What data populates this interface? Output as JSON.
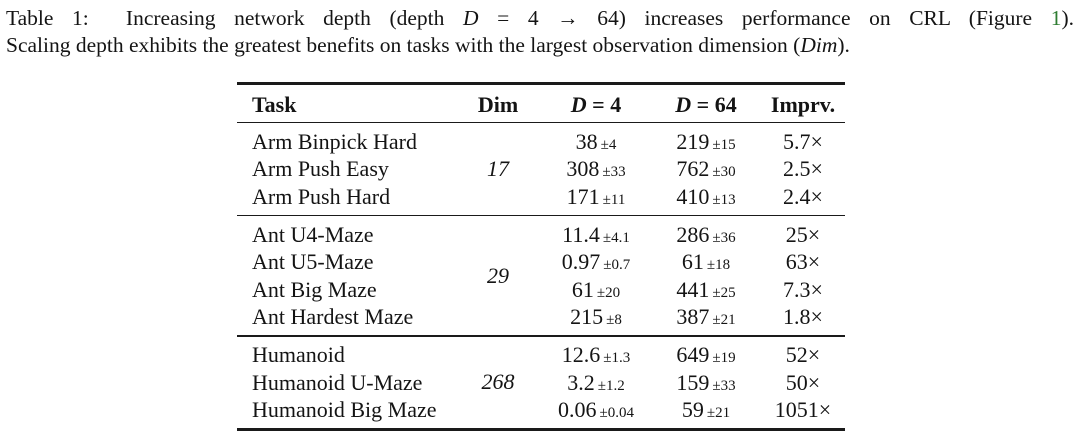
{
  "page": {
    "background": "#ffffff",
    "text_color": "#141414",
    "rule_color": "#1a1a1a",
    "link_color": "#2e7d32"
  },
  "caption": {
    "line1": [
      {
        "t": "Table 1:  Increasing network depth (depth "
      },
      {
        "t": "D",
        "s": "i"
      },
      {
        "t": " = 4 → 64) increases performance on CRL (Figure "
      },
      {
        "t": "1",
        "s": "link"
      },
      {
        "t": ")."
      }
    ],
    "line2": [
      {
        "t": "Scaling depth exhibits the greatest benefits on tasks with the largest observation dimension ("
      },
      {
        "t": "Dim",
        "s": "i"
      },
      {
        "t": ")."
      }
    ]
  },
  "table": {
    "header": [
      {
        "key": "task",
        "parts": [
          {
            "t": "Task"
          }
        ]
      },
      {
        "key": "dim",
        "parts": [
          {
            "t": "Dim"
          }
        ]
      },
      {
        "key": "d4",
        "parts": [
          {
            "t": "D",
            "s": "i"
          },
          {
            "t": " = 4"
          }
        ]
      },
      {
        "key": "d64",
        "parts": [
          {
            "t": "D",
            "s": "i"
          },
          {
            "t": " = 64"
          }
        ]
      },
      {
        "key": "imprv",
        "parts": [
          {
            "t": "Imprv."
          }
        ]
      }
    ],
    "groups": [
      {
        "dim": "17",
        "rows": [
          {
            "task": "Arm Binpick Hard",
            "d4": "38",
            "d4_pm": "±4",
            "d64": "219",
            "d64_pm": "±15",
            "imprv": "5.7×"
          },
          {
            "task": "Arm Push Easy",
            "d4": "308",
            "d4_pm": "±33",
            "d64": "762",
            "d64_pm": "±30",
            "imprv": "2.5×"
          },
          {
            "task": "Arm Push Hard",
            "d4": "171",
            "d4_pm": "±11",
            "d64": "410",
            "d64_pm": "±13",
            "imprv": "2.4×"
          }
        ]
      },
      {
        "dim": "29",
        "rows": [
          {
            "task": "Ant U4-Maze",
            "d4": "11.4",
            "d4_pm": "±4.1",
            "d64": "286",
            "d64_pm": "±36",
            "imprv": "25×"
          },
          {
            "task": "Ant U5-Maze",
            "d4": "0.97",
            "d4_pm": "±0.7",
            "d64": "61",
            "d64_pm": "±18",
            "imprv": "63×"
          },
          {
            "task": "Ant Big Maze",
            "d4": "61",
            "d4_pm": "±20",
            "d64": "441",
            "d64_pm": "±25",
            "imprv": "7.3×"
          },
          {
            "task": "Ant Hardest Maze",
            "d4": "215",
            "d4_pm": "±8",
            "d64": "387",
            "d64_pm": "±21",
            "imprv": "1.8×"
          }
        ]
      },
      {
        "dim": "268",
        "rows": [
          {
            "task": "Humanoid",
            "d4": "12.6",
            "d4_pm": "±1.3",
            "d64": "649",
            "d64_pm": "±19",
            "imprv": "52×"
          },
          {
            "task": "Humanoid U-Maze",
            "d4": "3.2",
            "d4_pm": "±1.2",
            "d64": "159",
            "d64_pm": "±33",
            "imprv": "50×"
          },
          {
            "task": "Humanoid Big Maze",
            "d4": "0.06",
            "d4_pm": "±0.04",
            "d64": "59",
            "d64_pm": "±21",
            "imprv": "1051×"
          }
        ]
      }
    ]
  }
}
